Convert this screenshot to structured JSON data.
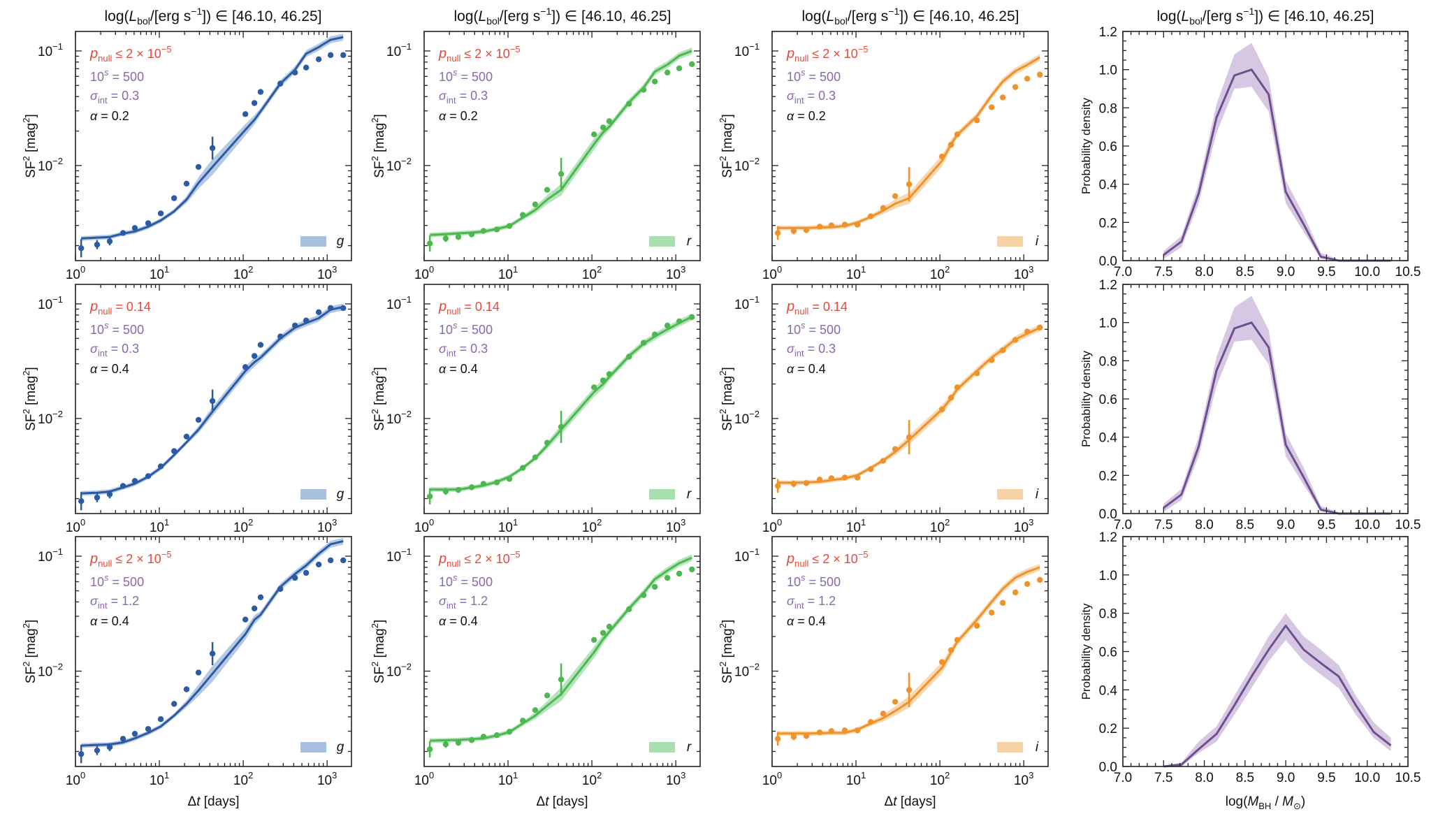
{
  "figure": {
    "column_title": "log(L_bol/[erg s^-1]) ∈ [46.10, 46.25]",
    "title_parts": {
      "pre": "log(",
      "L": "L",
      "sub": "bol",
      "mid": "/[erg s",
      "sup": "−1",
      "post": "]) ∈ [46.10, 46.25]"
    },
    "sf_ylabel": {
      "base": "SF",
      "sup1": "2",
      "mid": " [mag",
      "sup2": "2",
      "end": "]"
    },
    "sf_xlabel": {
      "delta": "Δ",
      "t": "t",
      "rest": " [days]"
    },
    "pdf_ylabel": "Probability density",
    "pdf_xlabel": {
      "pre": "log(",
      "M": "M",
      "sub": "BH",
      "slash": " / ",
      "M2": "M",
      "sun": "⊙",
      "post": ")"
    },
    "colors": {
      "g": "#2b5ba4",
      "g_band": "#a9c0de",
      "r": "#4cb84f",
      "r_band": "#a8dfb0",
      "i": "#f0922c",
      "i_band": "#f7d2a5",
      "pdf": "#6f4f90",
      "pdf_band": "#d6c8e2",
      "pnull_text": "#e8483a",
      "param_text": "#8b68ad",
      "alpha_text": "#111111"
    }
  },
  "chart_data": [
    {
      "type": "scatter+line",
      "group": "structure_function",
      "xscale": "log",
      "yscale": "log",
      "xlim": [
        1.0,
        1950
      ],
      "ylim": [
        0.00148,
        0.148
      ],
      "xticks": [
        1,
        10,
        100,
        1000
      ],
      "xtick_labels": [
        {
          "base": "10",
          "exp": "0"
        },
        {
          "base": "10",
          "exp": "1"
        },
        {
          "base": "10",
          "exp": "2"
        },
        {
          "base": "10",
          "exp": "3"
        }
      ],
      "yticks": [
        0.01,
        0.1
      ],
      "ytick_labels": [
        {
          "base": "10",
          "exp": "−2"
        },
        {
          "base": "10",
          "exp": "−1"
        }
      ],
      "ylabel": "SF^2 [mag^2]",
      "xlabel": "Δt [days]",
      "x": [
        1.17,
        1.81,
        2.56,
        3.69,
        5.1,
        7.36,
        10.4,
        15.0,
        21.1,
        29.3,
        43.0,
        106,
        136,
        161,
        277,
        414,
        562,
        794,
        1100,
        1556
      ],
      "observed": {
        "g": {
          "y": [
            0.0019,
            0.00204,
            0.00218,
            0.00258,
            0.00285,
            0.00314,
            0.00382,
            0.00519,
            0.00695,
            0.00972,
            0.0142,
            0.0281,
            0.0351,
            0.0439,
            0.0519,
            0.0648,
            0.0716,
            0.0846,
            0.092,
            0.092
          ],
          "err_dex": [
            0.08,
            0.04,
            0.035,
            0.015,
            0.01,
            0.01,
            0.01,
            0.01,
            0.01,
            0.01,
            0.1,
            0.01,
            0.01,
            0.01,
            0.01,
            0.01,
            0.01,
            0.01,
            0.01,
            0.01
          ]
        },
        "r": {
          "y": [
            0.00209,
            0.00231,
            0.00238,
            0.00251,
            0.00269,
            0.00277,
            0.00297,
            0.00371,
            0.00458,
            0.00614,
            0.00845,
            0.0187,
            0.0215,
            0.0244,
            0.0346,
            0.0458,
            0.0541,
            0.0648,
            0.0705,
            0.0767
          ],
          "err_dex": [
            0.07,
            0.03,
            0.025,
            0.015,
            0.01,
            0.01,
            0.01,
            0.01,
            0.01,
            0.01,
            0.14,
            0.01,
            0.01,
            0.01,
            0.01,
            0.01,
            0.01,
            0.01,
            0.01,
            0.01
          ]
        },
        "i": {
          "y": [
            0.00258,
            0.00269,
            0.00273,
            0.00293,
            0.00301,
            0.00305,
            0.00305,
            0.00361,
            0.00427,
            0.00541,
            0.00686,
            0.012,
            0.0152,
            0.0187,
            0.0248,
            0.0323,
            0.0393,
            0.0484,
            0.0573,
            0.0622
          ],
          "err_dex": [
            0.06,
            0.03,
            0.025,
            0.015,
            0.01,
            0.01,
            0.01,
            0.01,
            0.01,
            0.01,
            0.15,
            0.01,
            0.01,
            0.01,
            0.01,
            0.01,
            0.01,
            0.01,
            0.01,
            0.01
          ]
        }
      },
      "panels": [
        {
          "row": 0,
          "band": "g",
          "band_label": "g",
          "pnull": {
            "sym": "≤",
            "val": "2 × 10",
            "exp": "−5",
            "plain": ""
          },
          "s_value": "500",
          "sigma_int": "0.3",
          "alpha": "0.2",
          "model": [
            0.00231,
            0.00235,
            0.00238,
            0.00255,
            0.00266,
            0.00293,
            0.00332,
            0.00398,
            0.00505,
            0.00705,
            0.00973,
            0.0205,
            0.0251,
            0.0297,
            0.0519,
            0.0686,
            0.0946,
            0.108,
            0.125,
            0.132
          ],
          "band_dex": [
            0.02,
            0.02,
            0.02,
            0.02,
            0.02,
            0.02,
            0.02,
            0.02,
            0.03,
            0.05,
            0.07,
            0.05,
            0.04,
            0.03,
            0.03,
            0.03,
            0.03,
            0.03,
            0.03,
            0.03
          ]
        },
        {
          "row": 0,
          "band": "r",
          "band_label": "r",
          "pnull": {
            "sym": "≤",
            "val": "2 × 10",
            "exp": "−5",
            "plain": ""
          },
          "s_value": "500",
          "sigma_int": "0.3",
          "alpha": "0.2",
          "model": [
            0.00248,
            0.00252,
            0.00256,
            0.0026,
            0.00265,
            0.0028,
            0.00297,
            0.00351,
            0.00409,
            0.00505,
            0.00614,
            0.0154,
            0.0195,
            0.0218,
            0.0356,
            0.048,
            0.0658,
            0.076,
            0.0908,
            0.1
          ],
          "band_dex": [
            0.02,
            0.02,
            0.02,
            0.02,
            0.02,
            0.02,
            0.02,
            0.02,
            0.03,
            0.04,
            0.05,
            0.05,
            0.04,
            0.03,
            0.03,
            0.03,
            0.03,
            0.03,
            0.03,
            0.03
          ]
        },
        {
          "row": 0,
          "band": "i",
          "band_label": "i",
          "pnull": {
            "sym": "≤",
            "val": "2 × 10",
            "exp": "−5",
            "plain": ""
          },
          "s_value": "500",
          "sigma_int": "0.3",
          "alpha": "0.2",
          "model": [
            0.00285,
            0.00285,
            0.00285,
            0.00288,
            0.0029,
            0.00297,
            0.00318,
            0.00356,
            0.00404,
            0.00464,
            0.00519,
            0.011,
            0.0154,
            0.0185,
            0.027,
            0.0409,
            0.0541,
            0.0667,
            0.0757,
            0.088
          ],
          "band_dex": [
            0.02,
            0.02,
            0.02,
            0.02,
            0.02,
            0.02,
            0.02,
            0.02,
            0.03,
            0.04,
            0.05,
            0.05,
            0.04,
            0.03,
            0.03,
            0.03,
            0.03,
            0.03,
            0.03,
            0.03
          ]
        },
        {
          "row": 1,
          "band": "g",
          "band_label": "g",
          "pnull": {
            "sym": "=",
            "val": "0.14",
            "exp": "",
            "plain": "1"
          },
          "s_value": "500",
          "sigma_int": "0.3",
          "alpha": "0.4",
          "model": [
            0.00222,
            0.00225,
            0.0023,
            0.0025,
            0.0027,
            0.0031,
            0.0037,
            0.0048,
            0.0062,
            0.008,
            0.0115,
            0.026,
            0.031,
            0.034,
            0.05,
            0.062,
            0.068,
            0.075,
            0.089,
            0.094
          ],
          "band_dex": [
            0.02,
            0.02,
            0.02,
            0.02,
            0.02,
            0.02,
            0.02,
            0.02,
            0.02,
            0.03,
            0.04,
            0.04,
            0.04,
            0.03,
            0.03,
            0.03,
            0.03,
            0.03,
            0.03,
            0.03
          ]
        },
        {
          "row": 1,
          "band": "r",
          "band_label": "r",
          "pnull": {
            "sym": "=",
            "val": "0.14",
            "exp": "",
            "plain": "1"
          },
          "s_value": "500",
          "sigma_int": "0.3",
          "alpha": "0.4",
          "model": [
            0.0024,
            0.0024,
            0.0024,
            0.0025,
            0.0026,
            0.0028,
            0.0031,
            0.0037,
            0.0045,
            0.0058,
            0.008,
            0.017,
            0.02,
            0.023,
            0.035,
            0.045,
            0.052,
            0.06,
            0.068,
            0.077
          ],
          "band_dex": [
            0.02,
            0.02,
            0.02,
            0.02,
            0.02,
            0.02,
            0.02,
            0.02,
            0.02,
            0.03,
            0.04,
            0.04,
            0.04,
            0.03,
            0.03,
            0.03,
            0.03,
            0.03,
            0.03,
            0.03
          ]
        },
        {
          "row": 1,
          "band": "i",
          "band_label": "i",
          "pnull": {
            "sym": "=",
            "val": "0.14",
            "exp": "",
            "plain": "1"
          },
          "s_value": "500",
          "sigma_int": "0.3",
          "alpha": "0.4",
          "model": [
            0.00275,
            0.00275,
            0.00277,
            0.0028,
            0.0029,
            0.003,
            0.0032,
            0.0037,
            0.0043,
            0.0051,
            0.0065,
            0.012,
            0.015,
            0.018,
            0.026,
            0.034,
            0.04,
            0.049,
            0.055,
            0.062
          ],
          "band_dex": [
            0.02,
            0.02,
            0.02,
            0.02,
            0.02,
            0.02,
            0.02,
            0.02,
            0.02,
            0.03,
            0.04,
            0.04,
            0.04,
            0.03,
            0.03,
            0.03,
            0.03,
            0.03,
            0.03,
            0.03
          ]
        },
        {
          "row": 2,
          "band": "g",
          "band_label": "g",
          "pnull": {
            "sym": "≤",
            "val": "2 × 10",
            "exp": "−5",
            "plain": ""
          },
          "s_value": "500",
          "sigma_int": "1.2",
          "alpha": "0.4",
          "model": [
            0.00225,
            0.00228,
            0.0023,
            0.0024,
            0.0026,
            0.0029,
            0.0033,
            0.0041,
            0.0052,
            0.0068,
            0.0095,
            0.021,
            0.028,
            0.031,
            0.054,
            0.07,
            0.083,
            0.105,
            0.127,
            0.135
          ],
          "band_dex": [
            0.02,
            0.02,
            0.02,
            0.02,
            0.02,
            0.02,
            0.02,
            0.02,
            0.03,
            0.05,
            0.07,
            0.05,
            0.04,
            0.03,
            0.03,
            0.03,
            0.03,
            0.03,
            0.03,
            0.03
          ]
        },
        {
          "row": 2,
          "band": "r",
          "band_label": "r",
          "pnull": {
            "sym": "≤",
            "val": "2 × 10",
            "exp": "−5",
            "plain": ""
          },
          "s_value": "500",
          "sigma_int": "1.2",
          "alpha": "0.4",
          "model": [
            0.00248,
            0.0025,
            0.00252,
            0.00256,
            0.0026,
            0.00275,
            0.00295,
            0.0035,
            0.0041,
            0.005,
            0.0063,
            0.0146,
            0.019,
            0.022,
            0.035,
            0.048,
            0.063,
            0.075,
            0.087,
            0.097
          ],
          "band_dex": [
            0.02,
            0.02,
            0.02,
            0.02,
            0.02,
            0.02,
            0.02,
            0.02,
            0.03,
            0.04,
            0.06,
            0.05,
            0.04,
            0.03,
            0.03,
            0.03,
            0.03,
            0.03,
            0.03,
            0.03
          ]
        },
        {
          "row": 2,
          "band": "i",
          "band_label": "i",
          "pnull": {
            "sym": "≤",
            "val": "2 × 10",
            "exp": "−5",
            "plain": ""
          },
          "s_value": "500",
          "sigma_int": "1.2",
          "alpha": "0.4",
          "model": [
            0.00287,
            0.00287,
            0.00287,
            0.00288,
            0.0029,
            0.0029,
            0.0031,
            0.0035,
            0.0039,
            0.0045,
            0.0054,
            0.0107,
            0.0146,
            0.018,
            0.028,
            0.04,
            0.052,
            0.065,
            0.073,
            0.08
          ],
          "band_dex": [
            0.02,
            0.02,
            0.02,
            0.02,
            0.02,
            0.02,
            0.02,
            0.02,
            0.03,
            0.04,
            0.05,
            0.05,
            0.04,
            0.03,
            0.03,
            0.03,
            0.03,
            0.03,
            0.03,
            0.03
          ]
        }
      ]
    },
    {
      "type": "line",
      "group": "bh_mass_pdf",
      "xlim": [
        7.0,
        10.5
      ],
      "ylim": [
        0.0,
        1.2
      ],
      "xticks": [
        7.0,
        7.5,
        8.0,
        8.5,
        9.0,
        9.5,
        10.0,
        10.5
      ],
      "xtick_labels": [
        "7.0",
        "7.5",
        "8.0",
        "8.5",
        "9.0",
        "9.5",
        "10.0",
        "10.5"
      ],
      "yticks": [
        0.0,
        0.2,
        0.4,
        0.6,
        0.8,
        1.0,
        1.2
      ],
      "ytick_labels": [
        "0.0",
        "0.2",
        "0.4",
        "0.6",
        "0.8",
        "1.0",
        "1.2"
      ],
      "ylabel": "Probability density",
      "xlabel": "log(M_BH / M_sun)",
      "x": [
        7.5,
        7.72,
        7.93,
        8.15,
        8.37,
        8.58,
        8.79,
        9.0,
        9.22,
        9.43,
        9.65,
        9.86,
        10.08,
        10.29
      ],
      "panels": [
        {
          "row": 0,
          "y": [
            0.03,
            0.1,
            0.35,
            0.75,
            0.97,
            1.0,
            0.87,
            0.36,
            0.19,
            0.02,
            0.0,
            0.0,
            0.0,
            0.0
          ],
          "lower": [
            0.01,
            0.07,
            0.3,
            0.67,
            0.9,
            0.91,
            0.78,
            0.3,
            0.15,
            0.01,
            0.0,
            0.0,
            0.0,
            0.0
          ],
          "upper": [
            0.05,
            0.13,
            0.4,
            0.82,
            1.08,
            1.14,
            0.96,
            0.42,
            0.24,
            0.04,
            0.006,
            0.003,
            0.003,
            0.003
          ]
        },
        {
          "row": 1,
          "y": [
            0.03,
            0.1,
            0.35,
            0.75,
            0.97,
            1.0,
            0.87,
            0.36,
            0.19,
            0.02,
            0.0,
            0.0,
            0.0,
            0.0
          ],
          "lower": [
            0.01,
            0.07,
            0.3,
            0.67,
            0.9,
            0.91,
            0.78,
            0.3,
            0.15,
            0.01,
            0.0,
            0.0,
            0.0,
            0.0
          ],
          "upper": [
            0.05,
            0.13,
            0.4,
            0.82,
            1.08,
            1.14,
            0.96,
            0.42,
            0.24,
            0.04,
            0.006,
            0.003,
            0.003,
            0.003
          ]
        },
        {
          "row": 2,
          "y": [
            0.0,
            0.01,
            0.09,
            0.17,
            0.32,
            0.47,
            0.61,
            0.735,
            0.61,
            0.54,
            0.47,
            0.32,
            0.18,
            0.11
          ],
          "lower": [
            0.0,
            0.0,
            0.07,
            0.13,
            0.27,
            0.41,
            0.55,
            0.66,
            0.55,
            0.48,
            0.41,
            0.27,
            0.15,
            0.08
          ],
          "upper": [
            0.005,
            0.02,
            0.13,
            0.21,
            0.37,
            0.52,
            0.68,
            0.8,
            0.68,
            0.61,
            0.53,
            0.37,
            0.23,
            0.15
          ]
        }
      ]
    }
  ]
}
